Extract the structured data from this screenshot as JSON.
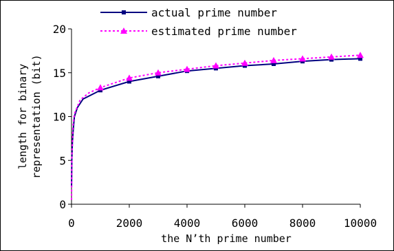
{
  "chart_data": {
    "type": "line",
    "title": "",
    "xlabel": "the N’th prime number",
    "ylabel_lines": [
      "length for binary",
      "representation (bit)"
    ],
    "xlim": [
      0,
      10000
    ],
    "ylim": [
      0,
      20
    ],
    "x_ticks": [
      "0",
      "2000",
      "4000",
      "6000",
      "8000",
      "10000"
    ],
    "y_ticks": [
      "0",
      "5",
      "10",
      "15",
      "20"
    ],
    "grid": false,
    "legend_position": "top",
    "series": [
      {
        "name": "actual prime number",
        "color": "#000080",
        "marker": "square",
        "line_style": "solid",
        "x": [
          1,
          2,
          10,
          100,
          1000,
          2000,
          3000,
          4000,
          5000,
          6000,
          7000,
          8000,
          9000,
          10000
        ],
        "y": [
          2,
          2,
          5,
          10,
          13,
          14,
          15,
          15,
          16,
          16,
          16,
          16,
          17,
          17
        ],
        "marker_x": [
          1000,
          2000,
          3000,
          4000,
          5000,
          6000,
          7000,
          8000,
          9000,
          10000
        ],
        "marker_y": [
          13.0,
          14.0,
          14.6,
          15.2,
          15.5,
          15.8,
          16.0,
          16.3,
          16.5,
          16.6
        ]
      },
      {
        "name": "estimated prime number",
        "color": "#ff00ff",
        "marker": "triangle",
        "line_style": "dotted",
        "x": [
          1,
          10,
          50,
          100,
          300,
          600,
          1000,
          2000,
          3000,
          4000,
          5000,
          6000,
          7000,
          8000,
          9000,
          10000
        ],
        "y": [
          0.5,
          5.2,
          8.9,
          10.3,
          11.9,
          12.7,
          13.3,
          14.4,
          15.0,
          15.4,
          15.8,
          16.1,
          16.4,
          16.6,
          16.8,
          17.0
        ],
        "marker_x": [
          1000,
          2000,
          3000,
          4000,
          5000,
          6000,
          7000,
          8000,
          9000,
          10000
        ],
        "marker_y": [
          13.3,
          14.4,
          15.0,
          15.4,
          15.8,
          16.1,
          16.4,
          16.6,
          16.8,
          17.0
        ]
      }
    ]
  }
}
